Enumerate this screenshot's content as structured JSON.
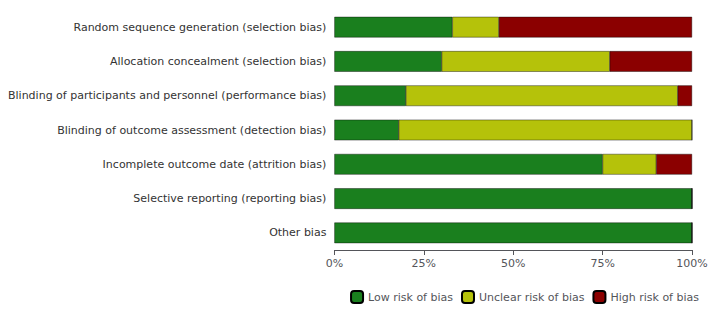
{
  "chart_data": {
    "type": "bar",
    "orientation": "horizontal",
    "stacked": true,
    "categories": [
      "Random sequence generation (selection bias)",
      "Allocation concealment (selection bias)",
      "Blinding of participants and personnel (performance bias)",
      "Blinding of outcome assessment (detection bias)",
      "Incomplete outcome date (attrition bias)",
      "Selective reporting (reporting bias)",
      "Other bias"
    ],
    "series": [
      {
        "name": "Low risk of bias",
        "color": "#1a7f1e",
        "values": [
          33,
          30,
          20,
          18,
          75,
          100,
          100
        ]
      },
      {
        "name": "Unclear risk of bias",
        "color": "#b5c20a",
        "values": [
          13,
          47,
          76,
          82,
          15,
          0,
          0
        ]
      },
      {
        "name": "High risk of bias",
        "color": "#8b0000",
        "values": [
          54,
          23,
          4,
          0,
          10,
          0,
          0
        ]
      }
    ],
    "xlim": [
      0,
      100
    ],
    "xticks": [
      {
        "value": 0,
        "label": "0%"
      },
      {
        "value": 25,
        "label": "25%"
      },
      {
        "value": 50,
        "label": "50%"
      },
      {
        "value": 75,
        "label": "75%"
      },
      {
        "value": 100,
        "label": "100%"
      }
    ],
    "grid": false,
    "legend": "bottom"
  }
}
